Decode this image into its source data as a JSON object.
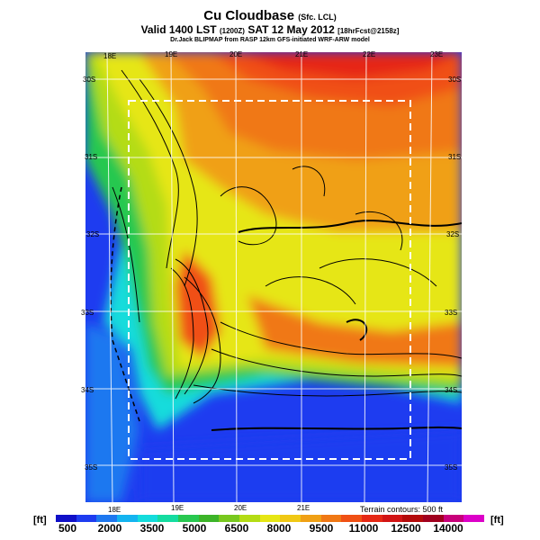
{
  "header": {
    "title": "Cu Cloudbase",
    "title_suffix": "(Sfc. LCL)",
    "valid_line": "Valid 1400 LST",
    "valid_utc": "(1200Z)",
    "valid_date": "SAT 12 May 2012",
    "forecast_tag": "[18hrFcst@2158z]",
    "credit": "Dr.Jack BLIPMAP from RASP 12km GFS-initiated WRF-ARW model"
  },
  "map": {
    "lon_labels_top": [
      "18E",
      "19E",
      "20E",
      "21E",
      "22E",
      "23E"
    ],
    "lon_labels_bottom": [
      "18E",
      "19E",
      "20E",
      "21E"
    ],
    "lat_labels_left": [
      "30S",
      "31S",
      "32S",
      "33S",
      "34S",
      "35S"
    ],
    "lat_labels_right": [
      "30S",
      "31S",
      "32S",
      "33S",
      "34S",
      "35S"
    ],
    "terrain_note": "Terrain contours: 500 ft"
  },
  "colorbar": {
    "unit_left": "[ft]",
    "unit_right": "[ft]",
    "labels": [
      "500",
      "2000",
      "3500",
      "5000",
      "6500",
      "8000",
      "9500",
      "11000",
      "12500",
      "14000"
    ],
    "colors": [
      "#1010c8",
      "#1e3cf0",
      "#1e78f0",
      "#14b4f0",
      "#14dcdc",
      "#14dca0",
      "#28c850",
      "#3cb428",
      "#78c81e",
      "#b4dc14",
      "#e6e614",
      "#f0c814",
      "#f0a014",
      "#f07814",
      "#f05014",
      "#e62814",
      "#d21414",
      "#b40a0a",
      "#a0001e",
      "#c8007a",
      "#dc00c8"
    ]
  }
}
